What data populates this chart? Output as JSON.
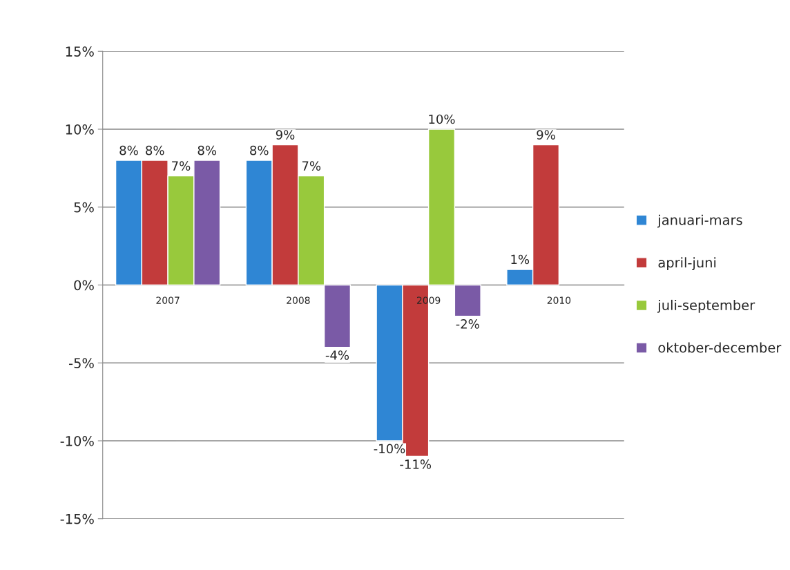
{
  "chart_data": {
    "type": "bar",
    "categories": [
      "2007",
      "2008",
      "2009",
      "2010"
    ],
    "series": [
      {
        "name": "januari-mars",
        "color": "#2f86d4",
        "values": [
          8,
          8,
          -10,
          1
        ],
        "value_labels": [
          "8%",
          "8%",
          "-10%",
          "1%"
        ]
      },
      {
        "name": "april-juni",
        "color": "#c23b3b",
        "values": [
          8,
          9,
          -11,
          9
        ],
        "value_labels": [
          "8%",
          "9%",
          "-11%",
          "9%"
        ]
      },
      {
        "name": "juli-september",
        "color": "#98c93c",
        "values": [
          7,
          7,
          10,
          null
        ],
        "value_labels": [
          "7%",
          "7%",
          "10%",
          null
        ]
      },
      {
        "name": "oktober-december",
        "color": "#7a5aa6",
        "values": [
          8,
          -4,
          -2,
          null
        ],
        "value_labels": [
          "8%",
          "-4%",
          "-2%",
          null
        ]
      }
    ],
    "ylim": [
      -15,
      15
    ],
    "yticks": [
      {
        "value": -15,
        "label": "-15%"
      },
      {
        "value": -10,
        "label": "-10%"
      },
      {
        "value": -5,
        "label": "-5%"
      },
      {
        "value": 0,
        "label": "0%"
      },
      {
        "value": 5,
        "label": "5%"
      },
      {
        "value": 10,
        "label": "10%"
      },
      {
        "value": 15,
        "label": "15%"
      }
    ],
    "grid": "y",
    "legend": "right"
  }
}
